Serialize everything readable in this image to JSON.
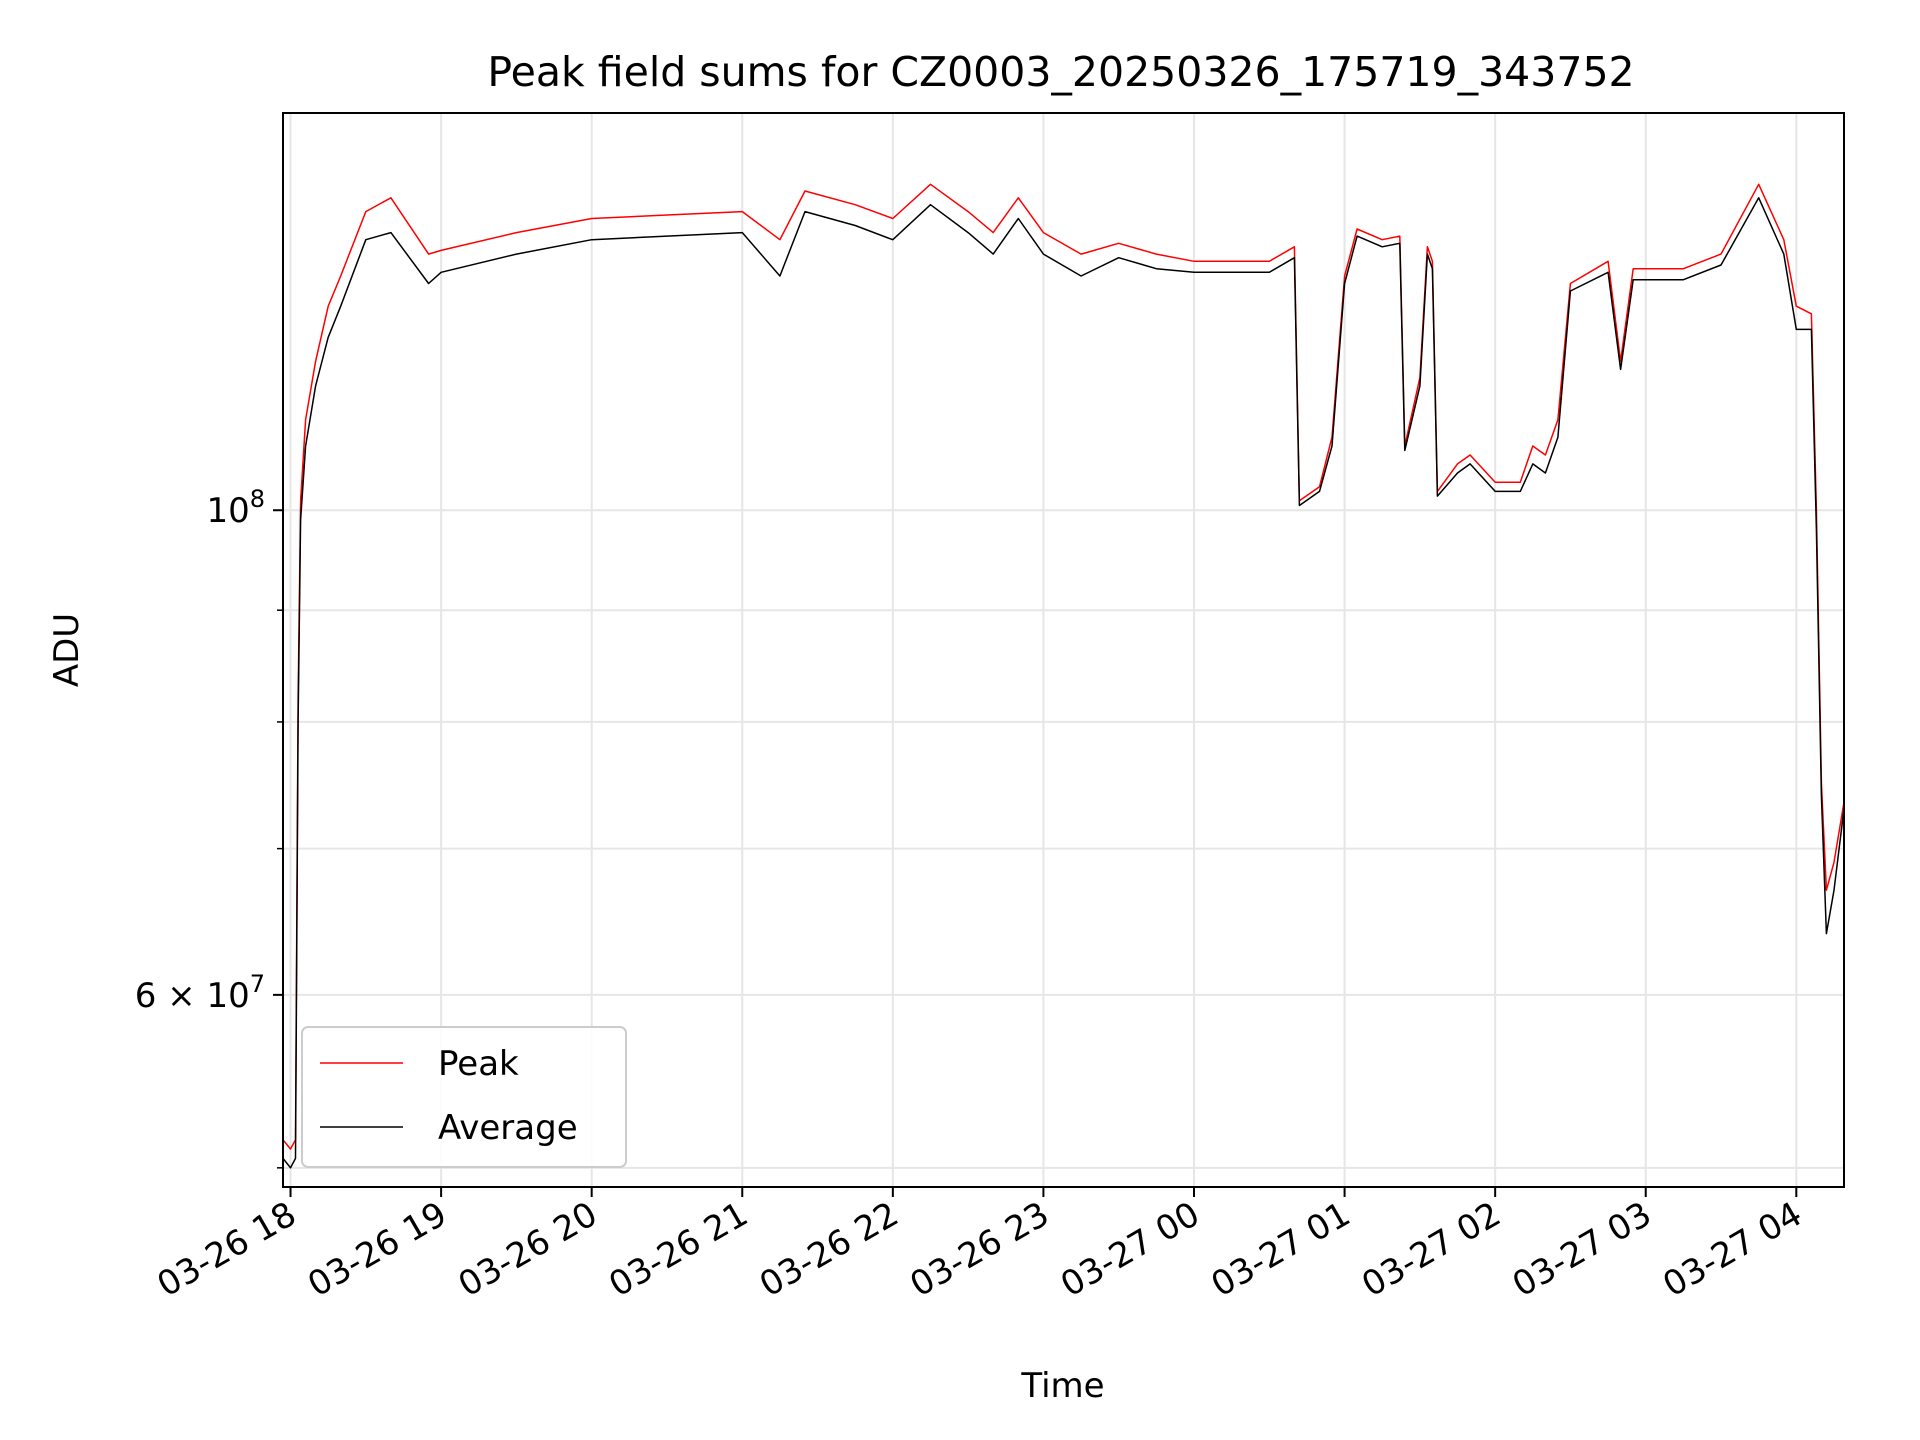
{
  "chart_data": {
    "type": "line",
    "title": "Peak field sums for CZ0003_20250326_175719_343752",
    "xlabel": "Time",
    "ylabel": "ADU",
    "yscale": "log",
    "ylim": [
      49000000,
      152000000
    ],
    "xlim": [
      "2025-03-26 17:57",
      "2025-03-27 04:19"
    ],
    "grid": true,
    "legend_position": "lower-left",
    "x_ticks": [
      {
        "value": "2025-03-26 18:00",
        "label": "03-26 18"
      },
      {
        "value": "2025-03-26 19:00",
        "label": "03-26 19"
      },
      {
        "value": "2025-03-26 20:00",
        "label": "03-26 20"
      },
      {
        "value": "2025-03-26 21:00",
        "label": "03-26 21"
      },
      {
        "value": "2025-03-26 22:00",
        "label": "03-26 22"
      },
      {
        "value": "2025-03-26 23:00",
        "label": "03-26 23"
      },
      {
        "value": "2025-03-27 00:00",
        "label": "03-27 00"
      },
      {
        "value": "2025-03-27 01:00",
        "label": "03-27 01"
      },
      {
        "value": "2025-03-27 02:00",
        "label": "03-27 02"
      },
      {
        "value": "2025-03-27 03:00",
        "label": "03-27 03"
      },
      {
        "value": "2025-03-27 04:00",
        "label": "03-27 04"
      }
    ],
    "y_ticks_major": [
      {
        "value": 60000000,
        "base": "6 × 10",
        "exp": "7"
      },
      {
        "value": 100000000,
        "base": "10",
        "exp": "8"
      }
    ],
    "y_ticks_minor": [
      50000000,
      70000000,
      80000000,
      90000000
    ],
    "series": [
      {
        "name": "Peak",
        "color": "#ff0000",
        "points": [
          [
            "2025-03-26 17:57",
            51500000
          ],
          [
            "2025-03-26 18:00",
            51000000
          ],
          [
            "2025-03-26 18:02",
            51500000
          ],
          [
            "2025-03-26 18:03",
            82000000
          ],
          [
            "2025-03-26 18:04",
            101000000
          ],
          [
            "2025-03-26 18:06",
            110000000
          ],
          [
            "2025-03-26 18:10",
            117000000
          ],
          [
            "2025-03-26 18:15",
            124000000
          ],
          [
            "2025-03-26 18:20",
            128000000
          ],
          [
            "2025-03-26 18:30",
            137000000
          ],
          [
            "2025-03-26 18:40",
            139000000
          ],
          [
            "2025-03-26 18:55",
            131000000
          ],
          [
            "2025-03-26 19:00",
            131500000
          ],
          [
            "2025-03-26 19:30",
            134000000
          ],
          [
            "2025-03-26 20:00",
            136000000
          ],
          [
            "2025-03-26 20:30",
            136500000
          ],
          [
            "2025-03-26 21:00",
            137000000
          ],
          [
            "2025-03-26 21:15",
            133000000
          ],
          [
            "2025-03-26 21:25",
            140000000
          ],
          [
            "2025-03-26 21:45",
            138000000
          ],
          [
            "2025-03-26 22:00",
            136000000
          ],
          [
            "2025-03-26 22:15",
            141000000
          ],
          [
            "2025-03-26 22:30",
            137000000
          ],
          [
            "2025-03-26 22:40",
            134000000
          ],
          [
            "2025-03-26 22:50",
            139000000
          ],
          [
            "2025-03-26 23:00",
            134000000
          ],
          [
            "2025-03-26 23:15",
            131000000
          ],
          [
            "2025-03-26 23:30",
            132500000
          ],
          [
            "2025-03-26 23:45",
            131000000
          ],
          [
            "2025-03-27 00:00",
            130000000
          ],
          [
            "2025-03-27 00:30",
            130000000
          ],
          [
            "2025-03-27 00:40",
            132000000
          ],
          [
            "2025-03-27 00:42",
            101000000
          ],
          [
            "2025-03-27 00:50",
            102500000
          ],
          [
            "2025-03-27 00:55",
            108000000
          ],
          [
            "2025-03-27 01:00",
            128000000
          ],
          [
            "2025-03-27 01:05",
            134500000
          ],
          [
            "2025-03-27 01:15",
            133000000
          ],
          [
            "2025-03-27 01:22",
            133500000
          ],
          [
            "2025-03-27 01:24",
            107000000
          ],
          [
            "2025-03-27 01:30",
            115000000
          ],
          [
            "2025-03-27 01:33",
            132000000
          ],
          [
            "2025-03-27 01:35",
            130000000
          ],
          [
            "2025-03-27 01:37",
            102000000
          ],
          [
            "2025-03-27 01:45",
            105000000
          ],
          [
            "2025-03-27 01:50",
            106000000
          ],
          [
            "2025-03-27 02:00",
            103000000
          ],
          [
            "2025-03-27 02:10",
            103000000
          ],
          [
            "2025-03-27 02:15",
            107000000
          ],
          [
            "2025-03-27 02:20",
            106000000
          ],
          [
            "2025-03-27 02:25",
            110000000
          ],
          [
            "2025-03-27 02:30",
            127000000
          ],
          [
            "2025-03-27 02:45",
            130000000
          ],
          [
            "2025-03-27 02:50",
            117000000
          ],
          [
            "2025-03-27 02:55",
            129000000
          ],
          [
            "2025-03-27 03:00",
            129000000
          ],
          [
            "2025-03-27 03:15",
            129000000
          ],
          [
            "2025-03-27 03:30",
            131000000
          ],
          [
            "2025-03-27 03:45",
            141000000
          ],
          [
            "2025-03-27 03:55",
            133000000
          ],
          [
            "2025-03-27 04:00",
            124000000
          ],
          [
            "2025-03-27 04:06",
            123000000
          ],
          [
            "2025-03-27 04:08",
            100000000
          ],
          [
            "2025-03-27 04:10",
            75000000
          ],
          [
            "2025-03-27 04:12",
            67000000
          ],
          [
            "2025-03-27 04:15",
            69000000
          ],
          [
            "2025-03-27 04:19",
            73500000
          ]
        ]
      },
      {
        "name": "Average",
        "color": "#000000",
        "points": [
          [
            "2025-03-26 17:57",
            50500000
          ],
          [
            "2025-03-26 18:00",
            50000000
          ],
          [
            "2025-03-26 18:02",
            50500000
          ],
          [
            "2025-03-26 18:03",
            80000000
          ],
          [
            "2025-03-26 18:04",
            99000000
          ],
          [
            "2025-03-26 18:06",
            107000000
          ],
          [
            "2025-03-26 18:10",
            114000000
          ],
          [
            "2025-03-26 18:15",
            120000000
          ],
          [
            "2025-03-26 18:20",
            124000000
          ],
          [
            "2025-03-26 18:30",
            133000000
          ],
          [
            "2025-03-26 18:40",
            134000000
          ],
          [
            "2025-03-26 18:55",
            127000000
          ],
          [
            "2025-03-26 19:00",
            128500000
          ],
          [
            "2025-03-26 19:30",
            131000000
          ],
          [
            "2025-03-26 20:00",
            133000000
          ],
          [
            "2025-03-26 20:30",
            133500000
          ],
          [
            "2025-03-26 21:00",
            134000000
          ],
          [
            "2025-03-26 21:15",
            128000000
          ],
          [
            "2025-03-26 21:25",
            137000000
          ],
          [
            "2025-03-26 21:45",
            135000000
          ],
          [
            "2025-03-26 22:00",
            133000000
          ],
          [
            "2025-03-26 22:15",
            138000000
          ],
          [
            "2025-03-26 22:30",
            134000000
          ],
          [
            "2025-03-26 22:40",
            131000000
          ],
          [
            "2025-03-26 22:50",
            136000000
          ],
          [
            "2025-03-26 23:00",
            131000000
          ],
          [
            "2025-03-26 23:15",
            128000000
          ],
          [
            "2025-03-26 23:30",
            130500000
          ],
          [
            "2025-03-26 23:45",
            129000000
          ],
          [
            "2025-03-27 00:00",
            128500000
          ],
          [
            "2025-03-27 00:30",
            128500000
          ],
          [
            "2025-03-27 00:40",
            130500000
          ],
          [
            "2025-03-27 00:42",
            100500000
          ],
          [
            "2025-03-27 00:50",
            102000000
          ],
          [
            "2025-03-27 00:55",
            107000000
          ],
          [
            "2025-03-27 01:00",
            127000000
          ],
          [
            "2025-03-27 01:05",
            133500000
          ],
          [
            "2025-03-27 01:15",
            132000000
          ],
          [
            "2025-03-27 01:22",
            132500000
          ],
          [
            "2025-03-27 01:24",
            106500000
          ],
          [
            "2025-03-27 01:30",
            114000000
          ],
          [
            "2025-03-27 01:33",
            131000000
          ],
          [
            "2025-03-27 01:35",
            129000000
          ],
          [
            "2025-03-27 01:37",
            101500000
          ],
          [
            "2025-03-27 01:45",
            104000000
          ],
          [
            "2025-03-27 01:50",
            105000000
          ],
          [
            "2025-03-27 02:00",
            102000000
          ],
          [
            "2025-03-27 02:10",
            102000000
          ],
          [
            "2025-03-27 02:15",
            105000000
          ],
          [
            "2025-03-27 02:20",
            104000000
          ],
          [
            "2025-03-27 02:25",
            108000000
          ],
          [
            "2025-03-27 02:30",
            126000000
          ],
          [
            "2025-03-27 02:45",
            128500000
          ],
          [
            "2025-03-27 02:50",
            116000000
          ],
          [
            "2025-03-27 02:55",
            127500000
          ],
          [
            "2025-03-27 03:00",
            127500000
          ],
          [
            "2025-03-27 03:15",
            127500000
          ],
          [
            "2025-03-27 03:30",
            129500000
          ],
          [
            "2025-03-27 03:45",
            139000000
          ],
          [
            "2025-03-27 03:55",
            131000000
          ],
          [
            "2025-03-27 04:00",
            121000000
          ],
          [
            "2025-03-27 04:06",
            121000000
          ],
          [
            "2025-03-27 04:08",
            98000000
          ],
          [
            "2025-03-27 04:10",
            74000000
          ],
          [
            "2025-03-27 04:12",
            64000000
          ],
          [
            "2025-03-27 04:15",
            67000000
          ],
          [
            "2025-03-27 04:19",
            73000000
          ]
        ]
      }
    ]
  }
}
